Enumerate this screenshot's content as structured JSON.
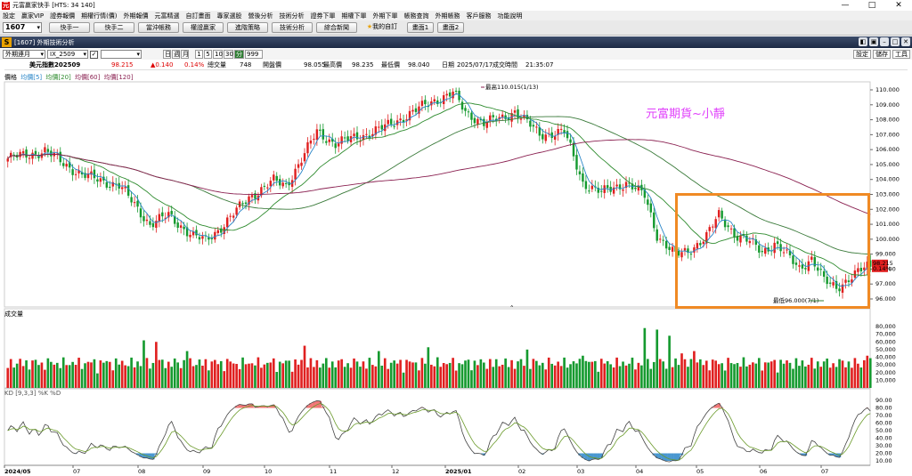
{
  "app": {
    "title": "元富贏家快手 [HTS: 34 140]"
  },
  "menu": [
    "設定",
    "贏家VIP",
    "證券報價",
    "期權行情(價)",
    "外期報價",
    "元富精選",
    "自訂畫面",
    "專家選股",
    "營後分析",
    "技術分析",
    "證券下單",
    "期權下單",
    "外期下單",
    "帳務查詢",
    "外期帳務",
    "客戶服務",
    "功能說明"
  ],
  "toolbar": {
    "code": "1607",
    "buttons": [
      "快手一",
      "快手二",
      "當沖帳務",
      "權證贏家",
      "進階策略",
      "技術分析",
      "綜合新聞",
      "我的自訂",
      "畫面1",
      "畫面2"
    ]
  },
  "window": {
    "title": "[1607] 外期技術分析"
  },
  "controls": {
    "market": "外期連月",
    "symbol": "IX_2509",
    "check": "✓",
    "periods": [
      "日",
      "週",
      "月",
      "1",
      "5",
      "10",
      "30",
      "分"
    ],
    "count": "999",
    "right_buttons": [
      "設定",
      "儲存",
      "工具"
    ]
  },
  "quote": {
    "name": "美元指數202509",
    "price": "98.215",
    "change": "▲0.140",
    "pct": "0.14%",
    "vol_label": "總交量",
    "vol": "748",
    "open_label": "開盤價",
    "open": "98.055",
    "high_label": "最高價",
    "high": "98.235",
    "low_label": "最低價",
    "low": "98.040",
    "date_label": "日期",
    "date": "2025/07/17",
    "time_label": "成交時間",
    "time": "21:35:07"
  },
  "legend": {
    "price": "價格",
    "ma5": "均價[5]",
    "ma20": "均價[20]",
    "ma60": "均價[60]",
    "ma120": "均價[120]"
  },
  "colors": {
    "up": "#e02020",
    "down": "#159a2f",
    "ma5": "#2a86c8",
    "ma20": "#2e8b2e",
    "ma60": "#8b2252",
    "ma120": "#8b2252",
    "highlight": "#f08a24",
    "watermark": "#e040fb"
  },
  "watermark": "元富期貨~小靜",
  "annotations": {
    "high": "最高110.015(1/13)",
    "low": "最低96.000(7/1)"
  },
  "last_price": {
    "price": "98.215",
    "pct": "0.14%"
  },
  "volume": {
    "label": "成交量"
  },
  "kd": {
    "label": "KD [9,3,3] %K %D"
  },
  "chart_data": {
    "type": "candlestick",
    "ylim": [
      95,
      111
    ],
    "price_ticks": [
      "110.000",
      "109.000",
      "108.000",
      "107.000",
      "106.000",
      "105.000",
      "104.000",
      "103.000",
      "102.000",
      "101.000",
      "100.000",
      "99.000",
      "98.000",
      "97.000",
      "96.000"
    ],
    "vol_ticks": [
      "80,000",
      "70,000",
      "60,000",
      "50,000",
      "40,000",
      "30,000",
      "20,000",
      "10,000"
    ],
    "kd_ticks": [
      "90.00",
      "80.00",
      "70.00",
      "60.00",
      "50.00",
      "40.00",
      "30.00",
      "20.00",
      "10.00"
    ],
    "x_labels": [
      "2024/05",
      "07",
      "08",
      "09",
      "10",
      "11",
      "12",
      "2025/01",
      "02",
      "03",
      "04",
      "05",
      "06",
      "07"
    ],
    "anchors": [
      [
        0,
        105.4
      ],
      [
        12,
        105.9
      ],
      [
        24,
        104.3
      ],
      [
        36,
        103.6
      ],
      [
        46,
        101.0
      ],
      [
        52,
        101.6
      ],
      [
        60,
        100.2
      ],
      [
        64,
        99.9
      ],
      [
        70,
        101.0
      ],
      [
        78,
        102.8
      ],
      [
        86,
        103.9
      ],
      [
        90,
        103.6
      ],
      [
        96,
        105.7
      ],
      [
        100,
        107.2
      ],
      [
        106,
        106.4
      ],
      [
        114,
        106.9
      ],
      [
        122,
        107.5
      ],
      [
        130,
        108.4
      ],
      [
        138,
        109.3
      ],
      [
        144,
        109.8
      ],
      [
        148,
        108.5
      ],
      [
        154,
        107.8
      ],
      [
        160,
        108.1
      ],
      [
        164,
        108.6
      ],
      [
        172,
        107.0
      ],
      [
        180,
        107.2
      ],
      [
        186,
        103.8
      ],
      [
        192,
        103.1
      ],
      [
        200,
        103.8
      ],
      [
        206,
        102.9
      ],
      [
        210,
        100.3
      ],
      [
        216,
        98.9
      ],
      [
        220,
        99.2
      ],
      [
        226,
        100.2
      ],
      [
        230,
        101.6
      ],
      [
        236,
        100.2
      ],
      [
        240,
        99.8
      ],
      [
        244,
        99.2
      ],
      [
        248,
        99.7
      ],
      [
        256,
        98.1
      ],
      [
        260,
        98.7
      ],
      [
        264,
        97.2
      ],
      [
        268,
        96.8
      ],
      [
        274,
        97.6
      ],
      [
        278,
        98.2
      ]
    ],
    "vol_spikes": [
      [
        44,
        62000
      ],
      [
        48,
        60000
      ],
      [
        58,
        48000
      ],
      [
        96,
        55000
      ],
      [
        120,
        48000
      ],
      [
        136,
        53000
      ],
      [
        168,
        50000
      ],
      [
        186,
        42000
      ],
      [
        206,
        78000
      ],
      [
        210,
        76000
      ],
      [
        214,
        68000
      ],
      [
        218,
        45000
      ],
      [
        222,
        48000
      ],
      [
        278,
        42000
      ]
    ]
  }
}
